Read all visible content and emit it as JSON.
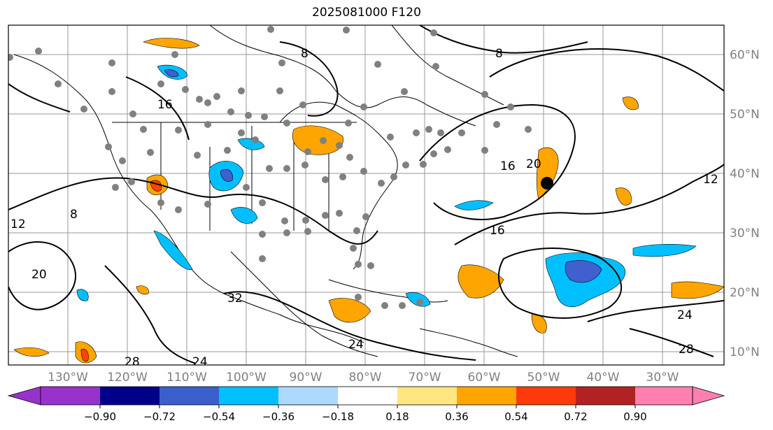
{
  "title": "2025081000 F120",
  "map": {
    "lon_labels": [
      "130°W",
      "120°W",
      "110°W",
      "100°W",
      "90°W",
      "80°W",
      "70°W",
      "60°W",
      "50°W",
      "40°W",
      "30°W"
    ],
    "lat_labels": [
      "60°N",
      "50°N",
      "40°N",
      "30°N",
      "20°N",
      "10°N"
    ],
    "contour_labels": [
      "8",
      "8",
      "16",
      "16",
      "12",
      "12",
      "20",
      "20",
      "24",
      "24",
      "28",
      "28",
      "32",
      "24",
      "16",
      "8"
    ],
    "colors": {
      "pos_light": "#ffe680",
      "pos_mid": "#ffa500",
      "pos_high": "#ff4500",
      "neg_light": "#add8ff",
      "neg_mid": "#00bfff",
      "neg_high": "#4060d0"
    }
  },
  "colorbar": {
    "ticks": [
      "−0.90",
      "−0.72",
      "−0.54",
      "−0.36",
      "−0.18",
      "0.18",
      "0.36",
      "0.54",
      "0.72",
      "0.90"
    ],
    "colors": [
      "#9932cc",
      "#00008b",
      "#3a5fcd",
      "#00bfff",
      "#add8e6",
      "#ffffff",
      "#ffe680",
      "#ffa500",
      "#ff4500",
      "#b22222",
      "#ff7fb0"
    ]
  }
}
